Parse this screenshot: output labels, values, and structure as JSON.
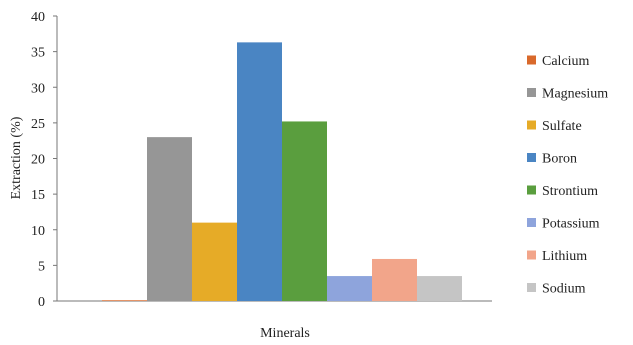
{
  "chart_data": {
    "type": "bar",
    "xlabel": "Minerals",
    "ylabel": "Extraction  (%)",
    "ylim": [
      0,
      40
    ],
    "yticks": [
      0,
      5,
      10,
      15,
      20,
      25,
      30,
      35,
      40
    ],
    "grid": false,
    "legend_position": "right",
    "series": [
      {
        "name": "Calcium",
        "value": 0.1,
        "color": "#d9692b"
      },
      {
        "name": "Magnesium",
        "value": 23.0,
        "color": "#969696"
      },
      {
        "name": "Sulfate",
        "value": 11.0,
        "color": "#e6ab27"
      },
      {
        "name": "Boron",
        "value": 36.3,
        "color": "#4a85c3"
      },
      {
        "name": "Strontium",
        "value": 25.2,
        "color": "#5a9e3e"
      },
      {
        "name": "Potassium",
        "value": 3.5,
        "color": "#8ea4dc"
      },
      {
        "name": "Lithium",
        "value": 5.9,
        "color": "#f2a58a"
      },
      {
        "name": "Sodium",
        "value": 3.5,
        "color": "#c5c5c5"
      }
    ]
  }
}
